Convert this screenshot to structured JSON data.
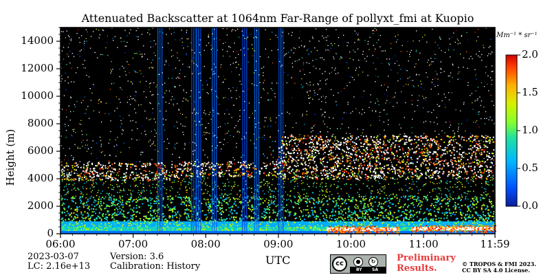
{
  "chart_data": {
    "type": "heatmap",
    "title": "Attenuated Backscatter at 1064nm Far-Range of pollyxt_fmi at Kuopio",
    "xlabel": "UTC",
    "ylabel": "Height (m)",
    "x_ticks": [
      "06:00",
      "07:00",
      "08:00",
      "09:00",
      "10:00",
      "11:00",
      "11:59"
    ],
    "x_range": [
      "06:00",
      "11:59"
    ],
    "y_ticks": [
      0,
      2000,
      4000,
      6000,
      8000,
      10000,
      12000,
      14000
    ],
    "y_range": [
      0,
      15000
    ],
    "colorbar": {
      "unit": "Mm⁻¹ * sr⁻¹",
      "ticks": [
        "0.0",
        "0.5",
        "1.0",
        "1.5",
        "2.0"
      ],
      "range": [
        0,
        2.0
      ],
      "colormap": "jet",
      "background": "black"
    },
    "features": {
      "boundary_layer_top_m": 500,
      "aerosol_layer_top_m": 2500,
      "cloud_layers": [
        {
          "start": "06:00",
          "end": "07:40",
          "base_m": 3900,
          "top_m": 5200
        },
        {
          "start": "07:40",
          "end": "09:00",
          "base_m": 4200,
          "top_m": 5300
        },
        {
          "start": "09:00",
          "end": "11:59",
          "base_m": 4000,
          "top_m": 7200
        }
      ],
      "rain_streaks_utc": [
        "07:20",
        "07:48",
        "07:52",
        "08:05",
        "08:30",
        "08:40",
        "09:00"
      ],
      "low_cloud_segments": [
        {
          "start": "09:40",
          "end": "10:40",
          "height_m": 300
        },
        {
          "start": "10:50",
          "end": "11:59",
          "height_m": 350
        }
      ]
    }
  },
  "meta": {
    "date": "2023-03-07",
    "lc": "LC: 2.16e+13",
    "version": "Version: 3.6",
    "calibration": "Calibration: History"
  },
  "footer": {
    "preliminary_line1": "Preliminary",
    "preliminary_line2": "Results.",
    "copyright_line1": "© TROPOS & FMI 2023.",
    "copyright_line2": "CC BY SA 4.0 License.",
    "cc_logo_text": "cc",
    "cc_by": "BY",
    "cc_sa": "SA"
  }
}
